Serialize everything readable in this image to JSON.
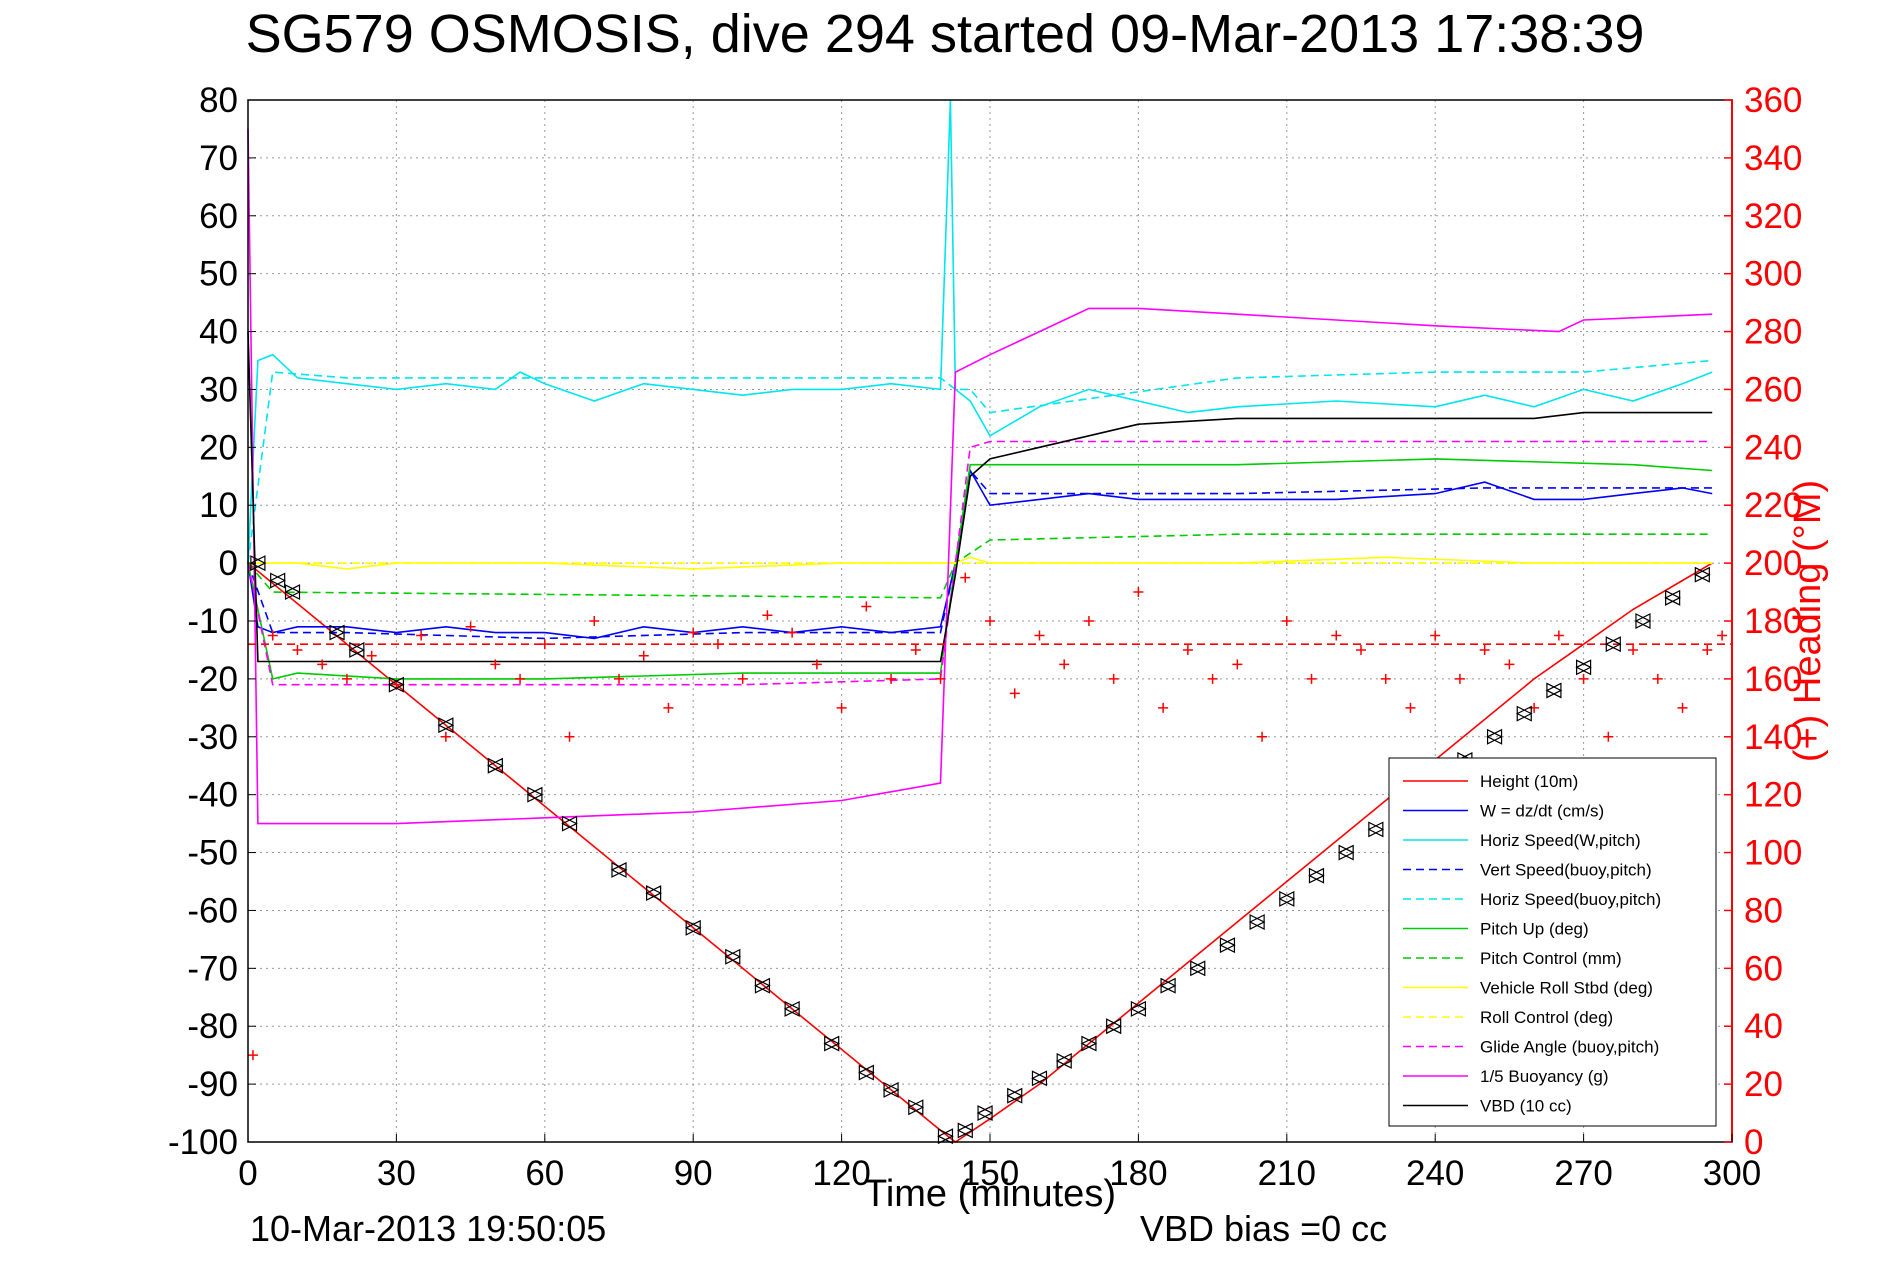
{
  "chart_data": {
    "type": "line",
    "title": "SG579 OSMOSIS, dive 294 started 09-Mar-2013 17:38:39",
    "xlabel": "Time (minutes)",
    "ylabel_right": "(+) Heading (°M)",
    "xlim": [
      0,
      300
    ],
    "ylim": [
      -100,
      80
    ],
    "ylim_right": [
      0,
      360
    ],
    "x_ticks": [
      "0",
      "30",
      "60",
      "90",
      "120",
      "150",
      "180",
      "210",
      "240",
      "270",
      "300"
    ],
    "y_ticks": [
      "80",
      "70",
      "60",
      "50",
      "40",
      "30",
      "20",
      "10",
      "0",
      "-10",
      "-20",
      "-30",
      "-40",
      "-50",
      "-60",
      "-70",
      "-80",
      "-90",
      "-100"
    ],
    "y_ticks_right": [
      "360",
      "340",
      "320",
      "300",
      "280",
      "260",
      "240",
      "220",
      "200",
      "180",
      "160",
      "140",
      "120",
      "100",
      "80",
      "60",
      "40",
      "20",
      "0"
    ],
    "grid": true,
    "legend_position": "bottom-right",
    "footer_left": "10-Mar-2013 19:50:05",
    "footer_right": "VBD bias =0 cc",
    "series": [
      {
        "name": "Height (10m)",
        "color": "#ff0000",
        "style": "solid",
        "axis": "left",
        "x": [
          0,
          10,
          20,
          30,
          40,
          50,
          60,
          70,
          80,
          90,
          100,
          110,
          120,
          130,
          140,
          143,
          150,
          160,
          170,
          180,
          190,
          200,
          210,
          220,
          230,
          240,
          250,
          260,
          270,
          280,
          290,
          296
        ],
        "y": [
          0,
          -7,
          -14,
          -21,
          -28,
          -35,
          -42,
          -49,
          -56,
          -63,
          -70,
          -77,
          -84,
          -91,
          -98,
          -100,
          -96,
          -90,
          -83,
          -76,
          -69,
          -62,
          -55,
          -48,
          -41,
          -34,
          -27,
          -20,
          -14,
          -8,
          -3,
          0
        ]
      },
      {
        "name": "W = dz/dt (cm/s)",
        "color": "#0000ff",
        "style": "solid",
        "axis": "left",
        "x": [
          0,
          2,
          5,
          10,
          20,
          30,
          40,
          50,
          60,
          70,
          80,
          90,
          100,
          110,
          120,
          130,
          140,
          143,
          146,
          150,
          160,
          170,
          180,
          200,
          220,
          240,
          250,
          260,
          270,
          280,
          290,
          296
        ],
        "y": [
          0,
          -11,
          -12,
          -11,
          -11,
          -12,
          -11,
          -12,
          -12,
          -13,
          -11,
          -12,
          -11,
          -12,
          -11,
          -12,
          -11,
          0,
          16,
          10,
          11,
          12,
          11,
          11,
          11,
          12,
          14,
          11,
          11,
          12,
          13,
          12
        ]
      },
      {
        "name": "Horiz Speed(W,pitch)",
        "color": "#00e5ee",
        "style": "solid",
        "axis": "left",
        "x": [
          0,
          2,
          5,
          10,
          20,
          30,
          40,
          50,
          55,
          60,
          70,
          80,
          90,
          100,
          110,
          120,
          130,
          140,
          142,
          143,
          146,
          150,
          160,
          170,
          180,
          190,
          200,
          220,
          240,
          250,
          260,
          270,
          280,
          290,
          296
        ],
        "y": [
          0,
          35,
          36,
          32,
          31,
          30,
          31,
          30,
          33,
          31,
          28,
          31,
          30,
          29,
          30,
          30,
          31,
          30,
          80,
          30,
          28,
          22,
          27,
          30,
          28,
          26,
          27,
          28,
          27,
          29,
          27,
          30,
          28,
          31,
          33
        ]
      },
      {
        "name": "Vert Speed(buoy,pitch)",
        "color": "#0000ff",
        "style": "dashed",
        "axis": "left",
        "x": [
          0,
          5,
          20,
          60,
          100,
          140,
          143,
          146,
          150,
          200,
          250,
          296
        ],
        "y": [
          0,
          -12,
          -12,
          -13,
          -12,
          -12,
          0,
          16,
          12,
          12,
          13,
          13
        ]
      },
      {
        "name": "Horiz Speed(buoy,pitch)",
        "color": "#00e5ee",
        "style": "dashed",
        "axis": "left",
        "x": [
          0,
          5,
          20,
          60,
          100,
          140,
          143,
          146,
          150,
          200,
          240,
          270,
          296
        ],
        "y": [
          0,
          33,
          32,
          32,
          32,
          32,
          30,
          30,
          26,
          32,
          33,
          33,
          35
        ]
      },
      {
        "name": "Pitch Up (deg)",
        "color": "#00cc00",
        "style": "solid",
        "axis": "left",
        "x": [
          0,
          5,
          10,
          30,
          60,
          100,
          140,
          143,
          146,
          150,
          200,
          240,
          280,
          296
        ],
        "y": [
          0,
          -20,
          -19,
          -20,
          -20,
          -19,
          -19,
          0,
          17,
          17,
          17,
          18,
          17,
          16
        ]
      },
      {
        "name": "Pitch Control (mm)",
        "color": "#00cc00",
        "style": "dashed",
        "axis": "left",
        "x": [
          0,
          5,
          140,
          143,
          150,
          200,
          296
        ],
        "y": [
          0,
          -5,
          -6,
          0,
          4,
          5,
          5
        ]
      },
      {
        "name": "Vehicle Roll Stbd (deg)",
        "color": "#ffff00",
        "style": "solid",
        "axis": "left",
        "x": [
          0,
          5,
          10,
          20,
          30,
          60,
          90,
          120,
          140,
          143,
          146,
          150,
          180,
          200,
          230,
          260,
          296
        ],
        "y": [
          0,
          0,
          0,
          -1,
          0,
          0,
          -1,
          0,
          0,
          0,
          1,
          0,
          0,
          0,
          1,
          0,
          0
        ]
      },
      {
        "name": "Roll Control (deg)",
        "color": "#ffff00",
        "style": "dashed",
        "axis": "left",
        "x": [
          0,
          5,
          60,
          120,
          140,
          146,
          200,
          296
        ],
        "y": [
          0,
          0,
          0,
          0,
          0,
          0,
          0,
          0
        ]
      },
      {
        "name": "Glide Angle (buoy,pitch)",
        "color": "#ff00ff",
        "style": "dashed",
        "axis": "left",
        "x": [
          0,
          5,
          20,
          60,
          100,
          140,
          143,
          146,
          150,
          200,
          250,
          296
        ],
        "y": [
          0,
          -21,
          -21,
          -21,
          -21,
          -20,
          0,
          20,
          21,
          21,
          21,
          21
        ]
      },
      {
        "name": "1/5 Buoyancy (g)",
        "color": "#ff00ff",
        "style": "solid",
        "axis": "left",
        "x": [
          0,
          2,
          10,
          30,
          60,
          90,
          120,
          140,
          143,
          150,
          160,
          170,
          180,
          200,
          220,
          240,
          265,
          270,
          296
        ],
        "y": [
          75,
          -45,
          -45,
          -45,
          -44,
          -43,
          -41,
          -38,
          33,
          36,
          40,
          44,
          44,
          43,
          42,
          41,
          40,
          42,
          43
        ]
      },
      {
        "name": "VBD (10 cc)",
        "color": "#000000",
        "style": "solid",
        "axis": "left",
        "x": [
          0,
          2,
          10,
          30,
          60,
          90,
          120,
          140,
          143,
          146,
          150,
          160,
          170,
          180,
          200,
          220,
          240,
          260,
          270,
          296
        ],
        "y": [
          40,
          -17,
          -17,
          -17,
          -17,
          -17,
          -17,
          -17,
          -2,
          15,
          18,
          20,
          22,
          24,
          25,
          25,
          25,
          25,
          26,
          26
        ]
      },
      {
        "name": "Heading",
        "color": "#ff0000",
        "style": "plus-markers",
        "axis": "right",
        "x": [
          1,
          5,
          10,
          15,
          20,
          25,
          30,
          35,
          40,
          45,
          50,
          55,
          60,
          65,
          70,
          75,
          80,
          85,
          90,
          95,
          100,
          105,
          110,
          115,
          120,
          125,
          130,
          135,
          140,
          145,
          150,
          155,
          160,
          165,
          170,
          175,
          180,
          185,
          190,
          195,
          200,
          205,
          210,
          215,
          220,
          225,
          230,
          235,
          240,
          245,
          250,
          255,
          260,
          265,
          270,
          275,
          280,
          285,
          290,
          295,
          298
        ],
        "y": [
          30,
          175,
          170,
          165,
          160,
          168,
          158,
          175,
          140,
          178,
          165,
          160,
          172,
          140,
          180,
          160,
          168,
          150,
          176,
          172,
          160,
          182,
          176,
          165,
          150,
          185,
          160,
          170,
          160,
          195,
          180,
          155,
          175,
          165,
          180,
          160,
          190,
          150,
          170,
          160,
          165,
          140,
          180,
          160,
          175,
          170,
          160,
          150,
          175,
          160,
          170,
          165,
          150,
          175,
          160,
          140,
          170,
          160,
          150,
          170,
          175
        ]
      },
      {
        "name": "Heading reference",
        "color": "#ff0000",
        "style": "dashed",
        "axis": "right",
        "x": [
          0,
          300
        ],
        "y": [
          172,
          172
        ]
      },
      {
        "name": "Depth samples",
        "color": "#000000",
        "style": "triangle-markers",
        "axis": "left",
        "x": [
          2,
          6,
          9,
          18,
          22,
          30,
          40,
          50,
          58,
          65,
          75,
          82,
          90,
          98,
          104,
          110,
          118,
          125,
          130,
          135,
          141,
          145,
          149,
          155,
          160,
          165,
          170,
          175,
          180,
          186,
          192,
          198,
          204,
          210,
          216,
          222,
          228,
          234,
          240,
          246,
          252,
          258,
          264,
          270,
          276,
          282,
          288,
          294
        ],
        "y": [
          0,
          -3,
          -5,
          -12,
          -15,
          -21,
          -28,
          -35,
          -40,
          -45,
          -53,
          -57,
          -63,
          -68,
          -73,
          -77,
          -83,
          -88,
          -91,
          -94,
          -99,
          -98,
          -95,
          -92,
          -89,
          -86,
          -83,
          -80,
          -77,
          -73,
          -70,
          -66,
          -62,
          -58,
          -54,
          -50,
          -46,
          -42,
          -38,
          -34,
          -30,
          -26,
          -22,
          -18,
          -14,
          -10,
          -6,
          -2
        ]
      }
    ]
  }
}
